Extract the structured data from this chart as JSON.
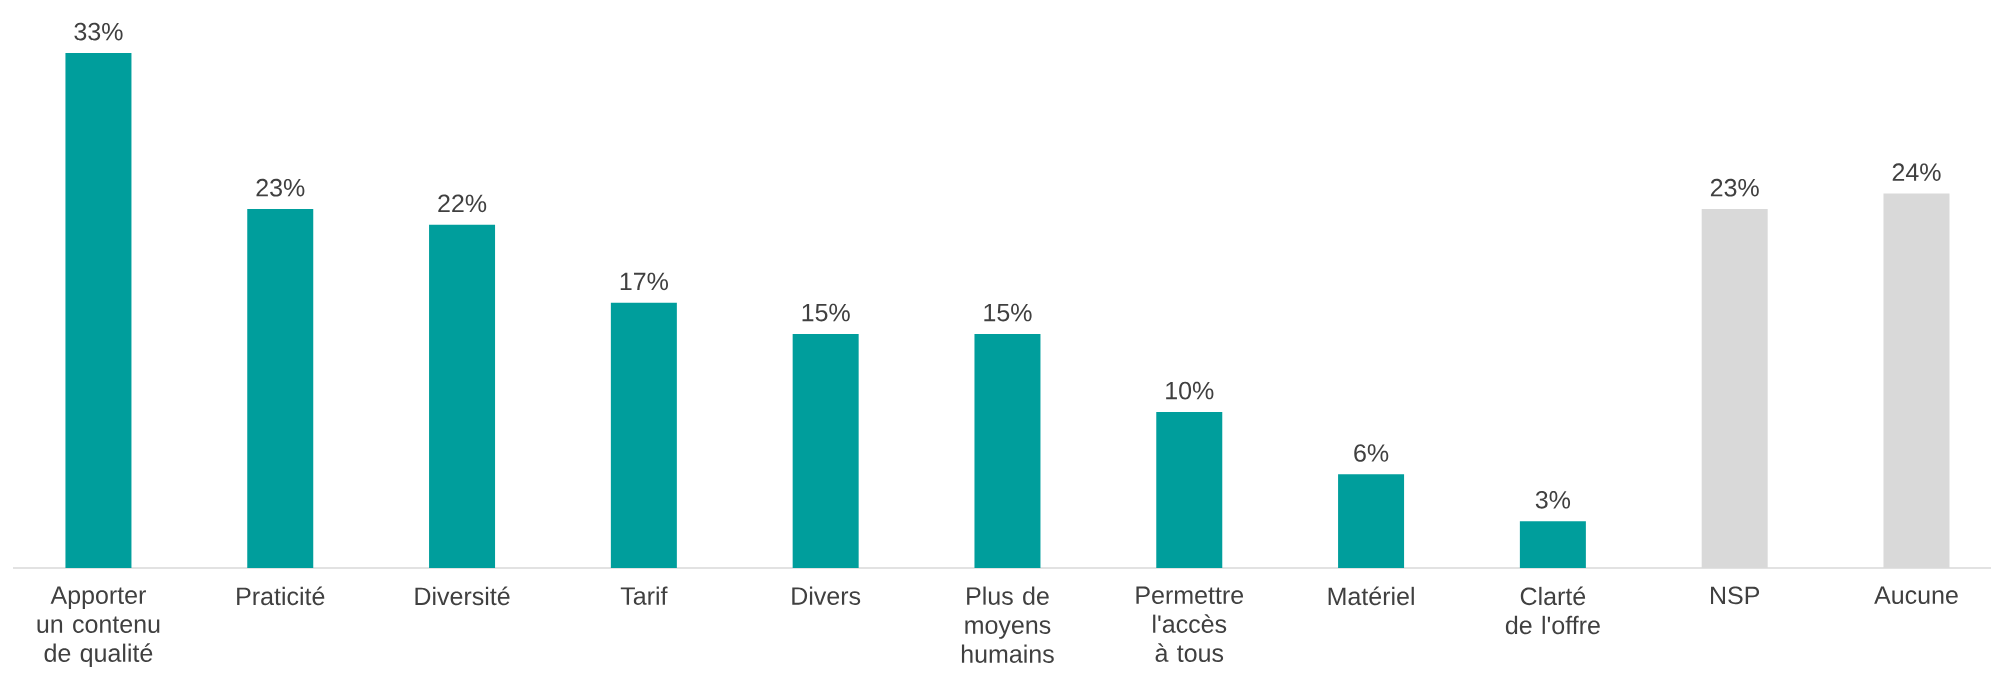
{
  "chart_data": {
    "type": "bar",
    "categories": [
      "Apporter un contenu de qualité",
      "Praticité",
      "Diversité",
      "Tarif",
      "Divers",
      "Plus de moyens humains",
      "Permettre l'accès à tous",
      "Matériel",
      "Clarté de l'offre",
      "NSP",
      "Aucune"
    ],
    "values": [
      33,
      23,
      22,
      17,
      15,
      15,
      10,
      6,
      3,
      23,
      24
    ],
    "value_labels": [
      "33%",
      "23%",
      "22%",
      "17%",
      "15%",
      "15%",
      "10%",
      "6%",
      "3%",
      "23%",
      "24%"
    ],
    "colors": [
      "#009e9c",
      "#009e9c",
      "#009e9c",
      "#009e9c",
      "#009e9c",
      "#009e9c",
      "#009e9c",
      "#009e9c",
      "#009e9c",
      "#d9d9d9",
      "#d9d9d9"
    ]
  }
}
